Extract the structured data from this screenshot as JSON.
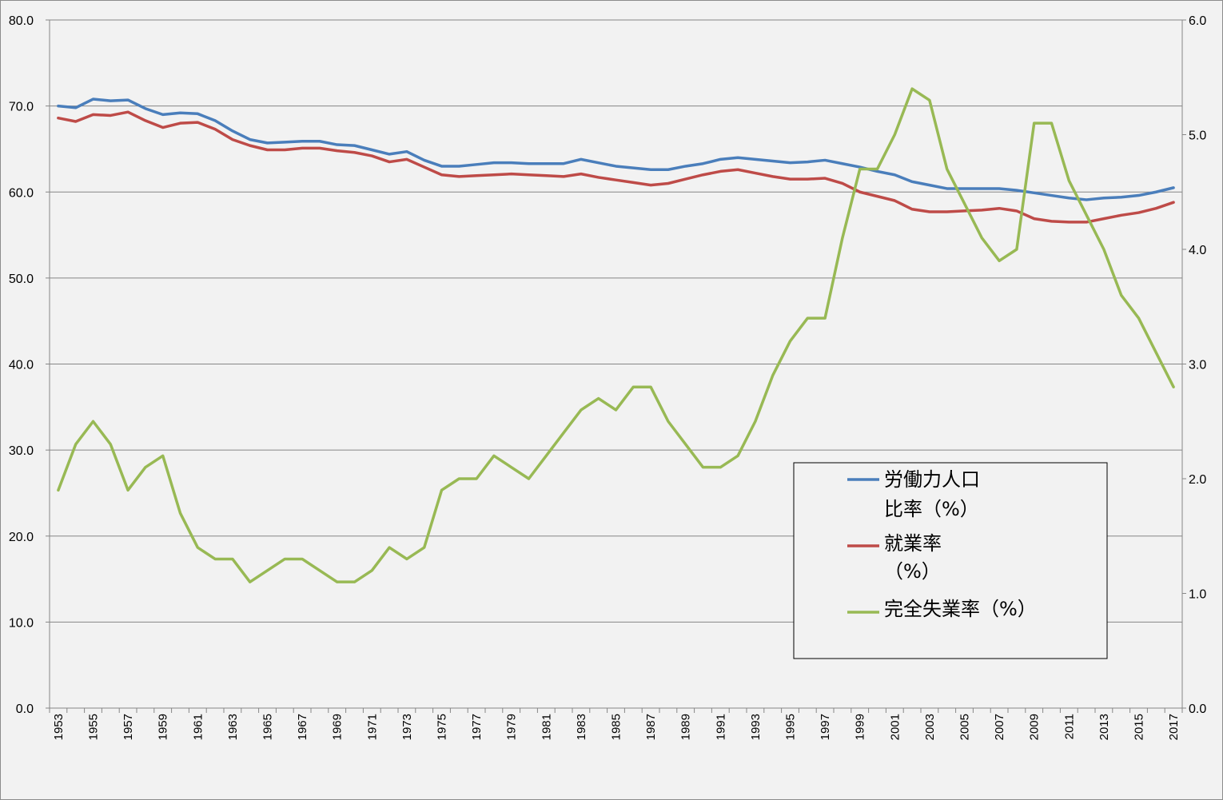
{
  "chart_data": {
    "type": "line",
    "title": "",
    "xlabel": "",
    "ylabel": "",
    "y2label": "",
    "x": [
      1953,
      1954,
      1955,
      1956,
      1957,
      1958,
      1959,
      1960,
      1961,
      1962,
      1963,
      1964,
      1965,
      1966,
      1967,
      1968,
      1969,
      1970,
      1971,
      1972,
      1973,
      1974,
      1975,
      1976,
      1977,
      1978,
      1979,
      1980,
      1981,
      1982,
      1983,
      1984,
      1985,
      1986,
      1987,
      1988,
      1989,
      1990,
      1991,
      1992,
      1993,
      1994,
      1995,
      1996,
      1997,
      1998,
      1999,
      2000,
      2001,
      2002,
      2003,
      2004,
      2005,
      2006,
      2007,
      2008,
      2009,
      2010,
      2011,
      2012,
      2013,
      2014,
      2015,
      2016,
      2017
    ],
    "x_tick_labels": [
      "1953",
      "1955",
      "1957",
      "1959",
      "1961",
      "1963",
      "1965",
      "1967",
      "1969",
      "1971",
      "1973",
      "1975",
      "1977",
      "1979",
      "1981",
      "1983",
      "1985",
      "1987",
      "1989",
      "1991",
      "1993",
      "1995",
      "1997",
      "1999",
      "2001",
      "2003",
      "2005",
      "2007",
      "2009",
      "2011",
      "2013",
      "2015",
      "2017"
    ],
    "ylim": [
      0,
      80
    ],
    "y_ticks": [
      "0.0",
      "10.0",
      "20.0",
      "30.0",
      "40.0",
      "50.0",
      "60.0",
      "70.0",
      "80.0"
    ],
    "y2lim": [
      0,
      6
    ],
    "y2_ticks": [
      "0.0",
      "1.0",
      "2.0",
      "3.0",
      "4.0",
      "5.0",
      "6.0"
    ],
    "grid": "horizontal",
    "legend_position": "right-inside",
    "series": [
      {
        "name": "労働力人口比率（%）",
        "legend_lines": [
          "労働力人口",
          "比率（%）"
        ],
        "axis": "left",
        "color": "#4a7ebb",
        "values": [
          70.0,
          69.8,
          70.8,
          70.6,
          70.7,
          69.7,
          69.0,
          69.2,
          69.1,
          68.3,
          67.1,
          66.1,
          65.7,
          65.8,
          65.9,
          65.9,
          65.5,
          65.4,
          64.9,
          64.4,
          64.7,
          63.7,
          63.0,
          63.0,
          63.2,
          63.4,
          63.4,
          63.3,
          63.3,
          63.3,
          63.8,
          63.4,
          63.0,
          62.8,
          62.6,
          62.6,
          63.0,
          63.3,
          63.8,
          64.0,
          63.8,
          63.6,
          63.4,
          63.5,
          63.7,
          63.3,
          62.9,
          62.4,
          62.0,
          61.2,
          60.8,
          60.4,
          60.4,
          60.4,
          60.4,
          60.2,
          59.9,
          59.6,
          59.3,
          59.1,
          59.3,
          59.4,
          59.6,
          60.0,
          60.5
        ]
      },
      {
        "name": "就業率（%）",
        "legend_lines": [
          "就業率",
          "（%）"
        ],
        "axis": "left",
        "color": "#be4b48",
        "values": [
          68.6,
          68.2,
          69.0,
          68.9,
          69.3,
          68.3,
          67.5,
          68.0,
          68.1,
          67.3,
          66.1,
          65.4,
          64.9,
          64.9,
          65.1,
          65.1,
          64.8,
          64.6,
          64.2,
          63.5,
          63.8,
          62.9,
          62.0,
          61.8,
          61.9,
          62.0,
          62.1,
          62.0,
          61.9,
          61.8,
          62.1,
          61.7,
          61.4,
          61.1,
          60.8,
          61.0,
          61.5,
          62.0,
          62.4,
          62.6,
          62.2,
          61.8,
          61.5,
          61.5,
          61.6,
          61.0,
          60.0,
          59.5,
          59.0,
          58.0,
          57.7,
          57.7,
          57.8,
          57.9,
          58.1,
          57.8,
          56.9,
          56.6,
          56.5,
          56.5,
          56.9,
          57.3,
          57.6,
          58.1,
          58.8
        ]
      },
      {
        "name": "完全失業率（%）",
        "legend_lines": [
          "完全失業率（%）"
        ],
        "axis": "right",
        "color": "#98b954",
        "values": [
          1.9,
          2.3,
          2.5,
          2.3,
          1.9,
          2.1,
          2.2,
          1.7,
          1.4,
          1.3,
          1.3,
          1.1,
          1.2,
          1.3,
          1.3,
          1.2,
          1.1,
          1.1,
          1.2,
          1.4,
          1.3,
          1.4,
          1.9,
          2.0,
          2.0,
          2.2,
          2.1,
          2.0,
          2.2,
          2.4,
          2.6,
          2.7,
          2.6,
          2.8,
          2.8,
          2.5,
          2.3,
          2.1,
          2.1,
          2.2,
          2.5,
          2.9,
          3.2,
          3.4,
          3.4,
          4.1,
          4.7,
          4.7,
          5.0,
          5.4,
          5.3,
          4.7,
          4.4,
          4.1,
          3.9,
          4.0,
          5.1,
          5.1,
          4.6,
          4.3,
          4.0,
          3.6,
          3.4,
          3.1,
          2.8
        ]
      }
    ]
  }
}
